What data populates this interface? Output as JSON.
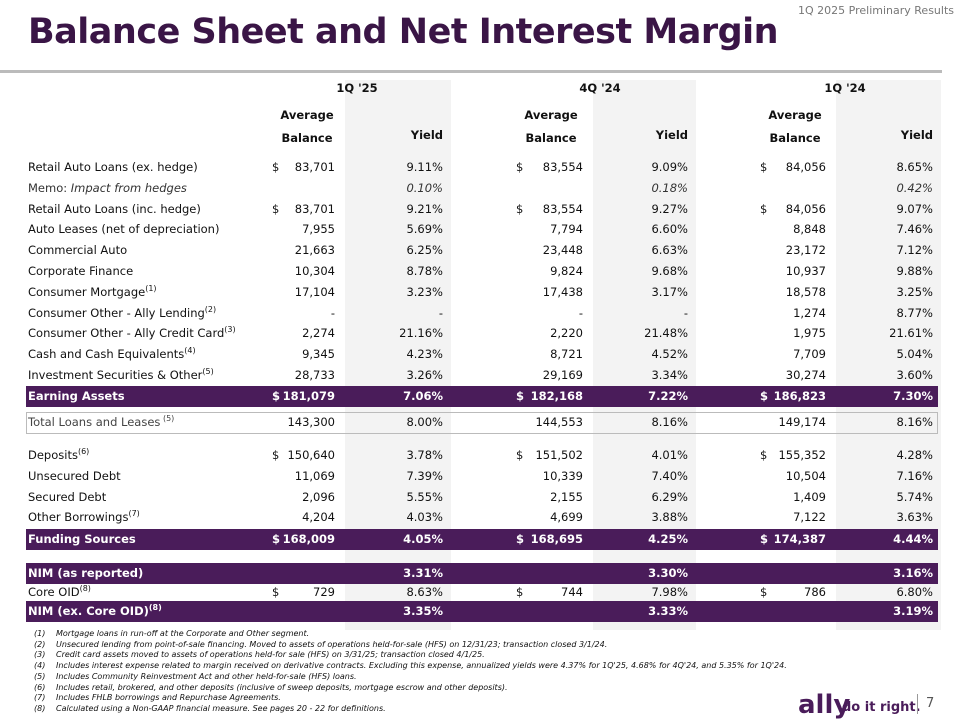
{
  "header": {
    "report": "1Q 2025 Preliminary Results",
    "title": "Balance Sheet and Net Interest Margin"
  },
  "table": {
    "periods": [
      "1Q '25",
      "4Q '24",
      "1Q '24"
    ],
    "sub": {
      "average": "Average",
      "balance": "Balance",
      "yield": "Yield"
    },
    "earning": [
      {
        "label": "Retail Auto Loans (ex. hedge)",
        "values": [
          {
            "cur": "$",
            "balance": "83,701",
            "yield": "9.11%"
          },
          {
            "cur": "$",
            "balance": "83,554",
            "yield": "9.09%"
          },
          {
            "cur": "$",
            "balance": "84,056",
            "yield": "8.65%"
          }
        ]
      },
      {
        "memo": "Memo:",
        "label": "Impact from hedges",
        "values": [
          {
            "yield": "0.10%"
          },
          {
            "yield": "0.18%"
          },
          {
            "yield": "0.42%"
          }
        ]
      },
      {
        "label": "Retail Auto Loans (inc. hedge)",
        "values": [
          {
            "cur": "$",
            "balance": "83,701",
            "yield": "9.21%"
          },
          {
            "cur": "$",
            "balance": "83,554",
            "yield": "9.27%"
          },
          {
            "cur": "$",
            "balance": "84,056",
            "yield": "9.07%"
          }
        ]
      },
      {
        "label": "Auto Leases (net of depreciation)",
        "values": [
          {
            "balance": "7,955",
            "yield": "5.69%"
          },
          {
            "balance": "7,794",
            "yield": "6.60%"
          },
          {
            "balance": "8,848",
            "yield": "7.46%"
          }
        ]
      },
      {
        "label": "Commercial Auto",
        "values": [
          {
            "balance": "21,663",
            "yield": "6.25%"
          },
          {
            "balance": "23,448",
            "yield": "6.63%"
          },
          {
            "balance": "23,172",
            "yield": "7.12%"
          }
        ]
      },
      {
        "label": "Corporate Finance",
        "values": [
          {
            "balance": "10,304",
            "yield": "8.78%"
          },
          {
            "balance": "9,824",
            "yield": "9.68%"
          },
          {
            "balance": "10,937",
            "yield": "9.88%"
          }
        ]
      },
      {
        "label": "Consumer Mortgage",
        "note": "(1)",
        "values": [
          {
            "balance": "17,104",
            "yield": "3.23%"
          },
          {
            "balance": "17,438",
            "yield": "3.17%"
          },
          {
            "balance": "18,578",
            "yield": "3.25%"
          }
        ]
      },
      {
        "label": "Consumer Other - Ally Lending",
        "note": "(2)",
        "values": [
          {
            "balance": "-",
            "yield": "-"
          },
          {
            "balance": "-",
            "yield": "-"
          },
          {
            "balance": "1,274",
            "yield": "8.77%"
          }
        ]
      },
      {
        "label": "Consumer Other - Ally Credit Card",
        "note": "(3)",
        "values": [
          {
            "balance": "2,274",
            "yield": "21.16%"
          },
          {
            "balance": "2,220",
            "yield": "21.48%"
          },
          {
            "balance": "1,975",
            "yield": "21.61%"
          }
        ]
      },
      {
        "label": "Cash and Cash Equivalents",
        "note": "(4)",
        "values": [
          {
            "balance": "9,345",
            "yield": "4.23%"
          },
          {
            "balance": "8,721",
            "yield": "4.52%"
          },
          {
            "balance": "7,709",
            "yield": "5.04%"
          }
        ]
      },
      {
        "label": "Investment Securities & Other",
        "note": "(5)",
        "values": [
          {
            "balance": "28,733",
            "yield": "3.26%"
          },
          {
            "balance": "29,169",
            "yield": "3.34%"
          },
          {
            "balance": "30,274",
            "yield": "3.60%"
          }
        ]
      }
    ],
    "earning_total": {
      "label": "Earning Assets",
      "values": [
        {
          "cur": "$",
          "balance": "181,079",
          "yield": "7.06%"
        },
        {
          "cur": "$",
          "balance": "182,168",
          "yield": "7.22%"
        },
        {
          "cur": "$",
          "balance": "186,823",
          "yield": "7.30%"
        }
      ]
    },
    "total_loans": {
      "label": "Total Loans and Leases",
      "note": "(5)",
      "values": [
        {
          "balance": "143,300",
          "yield": "8.00%"
        },
        {
          "balance": "144,553",
          "yield": "8.16%"
        },
        {
          "balance": "149,174",
          "yield": "8.16%"
        }
      ]
    },
    "funding": [
      {
        "label": "Deposits",
        "note": "(6)",
        "values": [
          {
            "cur": "$",
            "balance": "150,640",
            "yield": "3.78%"
          },
          {
            "cur": "$",
            "balance": "151,502",
            "yield": "4.01%"
          },
          {
            "cur": "$",
            "balance": "155,352",
            "yield": "4.28%"
          }
        ]
      },
      {
        "label": "Unsecured Debt",
        "values": [
          {
            "balance": "11,069",
            "yield": "7.39%"
          },
          {
            "balance": "10,339",
            "yield": "7.40%"
          },
          {
            "balance": "10,504",
            "yield": "7.16%"
          }
        ]
      },
      {
        "label": "Secured Debt",
        "values": [
          {
            "balance": "2,096",
            "yield": "5.55%"
          },
          {
            "balance": "2,155",
            "yield": "6.29%"
          },
          {
            "balance": "1,409",
            "yield": "5.74%"
          }
        ]
      },
      {
        "label": "Other Borrowings",
        "note": "(7)",
        "values": [
          {
            "balance": "4,204",
            "yield": "4.03%"
          },
          {
            "balance": "4,699",
            "yield": "3.88%"
          },
          {
            "balance": "7,122",
            "yield": "3.63%"
          }
        ]
      }
    ],
    "funding_total": {
      "label": "Funding Sources",
      "values": [
        {
          "cur": "$",
          "balance": "168,009",
          "yield": "4.05%"
        },
        {
          "cur": "$",
          "balance": "168,695",
          "yield": "4.25%"
        },
        {
          "cur": "$",
          "balance": "174,387",
          "yield": "4.44%"
        }
      ]
    },
    "nim": {
      "label": "NIM (as reported)",
      "values": [
        {
          "yield": "3.31%"
        },
        {
          "yield": "3.30%"
        },
        {
          "yield": "3.16%"
        }
      ]
    },
    "core_oid": {
      "label": "Core OID",
      "note": "(8)",
      "values": [
        {
          "cur": "$",
          "balance": "729",
          "yield": "8.63%"
        },
        {
          "cur": "$",
          "balance": "744",
          "yield": "7.98%"
        },
        {
          "cur": "$",
          "balance": "786",
          "yield": "6.80%"
        }
      ]
    },
    "nim_ex": {
      "label": "NIM (ex. Core OID)",
      "note": "(8)",
      "values": [
        {
          "yield": "3.35%"
        },
        {
          "yield": "3.33%"
        },
        {
          "yield": "3.19%"
        }
      ]
    }
  },
  "footnotes": [
    {
      "num": "(1)",
      "text": "Mortgage loans in run-off at the Corporate and Other segment."
    },
    {
      "num": "(2)",
      "text": "Unsecured lending from point-of-sale financing. Moved to assets of operations held-for-sale (HFS) on 12/31/23; transaction closed 3/1/24."
    },
    {
      "num": "(3)",
      "text": "Credit card assets moved to assets of operations held-for sale (HFS) on 3/31/25; transaction closed 4/1/25."
    },
    {
      "num": "(4)",
      "text": "Includes interest expense related to margin received on derivative contracts. Excluding this expense, annualized yields were 4.37% for 1Q'25, 4.68% for 4Q'24, and 5.35% for 1Q'24."
    },
    {
      "num": "(5)",
      "text": "Includes Community Reinvestment Act and other held-for-sale (HFS) loans."
    },
    {
      "num": "(6)",
      "text": "Includes retail, brokered, and other deposits (inclusive of sweep deposits, mortgage escrow and other deposits)."
    },
    {
      "num": "(7)",
      "text": "Includes FHLB borrowings and Repurchase Agreements."
    },
    {
      "num": "(8)",
      "text": "Calculated using a Non-GAAP financial measure. See pages 20 - 22 for definitions."
    }
  ],
  "footer": {
    "brand": "ally",
    "tagline": "do it right.",
    "page": "7"
  }
}
